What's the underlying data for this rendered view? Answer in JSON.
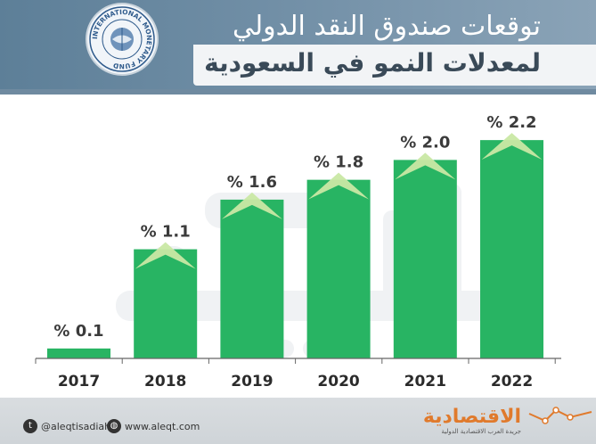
{
  "header": {
    "title_line1": "توقعات صندوق النقد الدولي",
    "title_line2": "لمعدلات النمو في السعودية",
    "seal_text": "INTERNATIONAL MONETARY FUND"
  },
  "chart_data": {
    "type": "bar",
    "categories": [
      "2017",
      "2018",
      "2019",
      "2020",
      "2021",
      "2022"
    ],
    "values": [
      0.1,
      1.1,
      1.6,
      1.8,
      2.0,
      2.2
    ],
    "value_labels": [
      "% 0.1",
      "% 1.1",
      "% 1.6",
      "% 1.8",
      "% 2.0",
      "% 2.2"
    ],
    "title": "توقعات صندوق النقد الدولي لمعدلات النمو في السعودية",
    "xlabel": "",
    "ylabel": "",
    "ylim": [
      0,
      2.3
    ],
    "grid": false,
    "legend": "none",
    "bar_color": "#28b463",
    "accent_color": "#c9e8a4"
  },
  "footer": {
    "twitter": "@aleqtisadiah",
    "website": "www.aleqt.com",
    "brand": "الاقتصادية",
    "brand_tagline": "جريدة العرب الاقتصادية الدولية",
    "brand_color": "#e07a2c"
  }
}
